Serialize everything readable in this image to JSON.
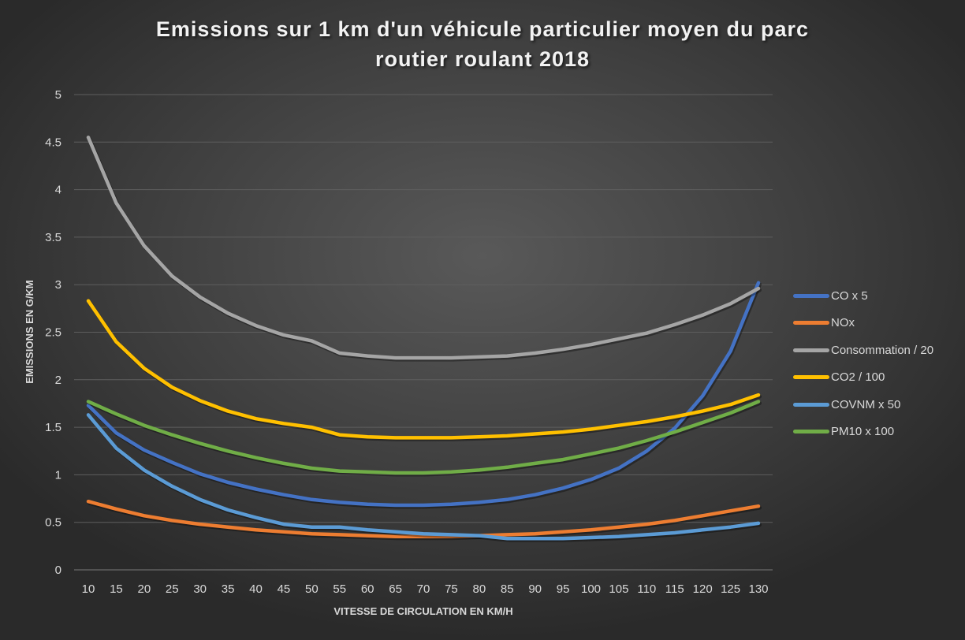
{
  "chart_data": {
    "type": "line",
    "title": "Emissions sur 1 km d'un véhicule particulier moyen du parc routier roulant 2018",
    "title_lines": [
      "Emissions sur 1 km d'un véhicule particulier moyen du parc",
      "routier roulant 2018"
    ],
    "xlabel": "VITESSE DE CIRCULATION EN KM/H",
    "ylabel": "EMISSIONS EN G/KM",
    "ylim": [
      0,
      5
    ],
    "yticks": [
      "0",
      "0.5",
      "1",
      "1.5",
      "2",
      "2.5",
      "3",
      "3.5",
      "4",
      "4.5",
      "5"
    ],
    "grid": true,
    "legend_position": "right",
    "categories": [
      10,
      15,
      20,
      25,
      30,
      35,
      40,
      45,
      50,
      55,
      60,
      65,
      70,
      75,
      80,
      85,
      90,
      95,
      100,
      105,
      110,
      115,
      120,
      125,
      130
    ],
    "series": [
      {
        "name": "CO x 5",
        "color": "#4472c4",
        "values": [
          1.73,
          1.44,
          1.26,
          1.13,
          1.01,
          0.92,
          0.85,
          0.79,
          0.74,
          0.71,
          0.69,
          0.68,
          0.68,
          0.69,
          0.71,
          0.74,
          0.79,
          0.86,
          0.95,
          1.07,
          1.25,
          1.49,
          1.83,
          2.3,
          3.02
        ]
      },
      {
        "name": "NOx",
        "color": "#ed7d31",
        "values": [
          0.72,
          0.64,
          0.57,
          0.52,
          0.48,
          0.45,
          0.42,
          0.4,
          0.38,
          0.37,
          0.36,
          0.35,
          0.35,
          0.35,
          0.36,
          0.37,
          0.38,
          0.4,
          0.42,
          0.45,
          0.48,
          0.52,
          0.57,
          0.62,
          0.67
        ]
      },
      {
        "name": "Consommation / 20",
        "color": "#a5a5a5",
        "values": [
          4.55,
          3.86,
          3.41,
          3.09,
          2.87,
          2.7,
          2.57,
          2.47,
          2.41,
          2.28,
          2.25,
          2.23,
          2.23,
          2.23,
          2.24,
          2.25,
          2.28,
          2.32,
          2.37,
          2.43,
          2.49,
          2.58,
          2.68,
          2.8,
          2.96
        ]
      },
      {
        "name": "CO2 / 100",
        "color": "#ffc000",
        "values": [
          2.83,
          2.4,
          2.12,
          1.92,
          1.78,
          1.67,
          1.59,
          1.54,
          1.5,
          1.42,
          1.4,
          1.39,
          1.39,
          1.39,
          1.4,
          1.41,
          1.43,
          1.45,
          1.48,
          1.52,
          1.56,
          1.61,
          1.67,
          1.74,
          1.84
        ]
      },
      {
        "name": "COVNM x 50",
        "color": "#5b9bd5",
        "values": [
          1.63,
          1.28,
          1.05,
          0.88,
          0.74,
          0.63,
          0.55,
          0.48,
          0.45,
          0.45,
          0.42,
          0.4,
          0.38,
          0.37,
          0.36,
          0.33,
          0.33,
          0.33,
          0.34,
          0.35,
          0.37,
          0.39,
          0.42,
          0.45,
          0.49
        ]
      },
      {
        "name": "PM10 x 100",
        "color": "#70ad47",
        "values": [
          1.77,
          1.64,
          1.52,
          1.42,
          1.33,
          1.25,
          1.18,
          1.12,
          1.07,
          1.04,
          1.03,
          1.02,
          1.02,
          1.03,
          1.05,
          1.08,
          1.12,
          1.16,
          1.22,
          1.28,
          1.36,
          1.45,
          1.55,
          1.65,
          1.77
        ]
      }
    ]
  }
}
